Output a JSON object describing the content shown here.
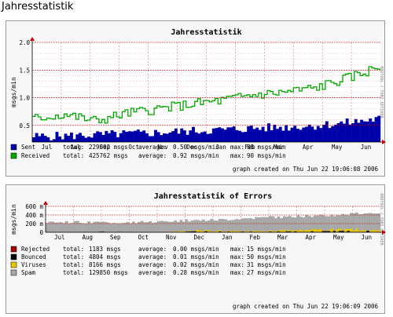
{
  "page": {
    "title": "Jahresstatistik"
  },
  "months": [
    "Jul",
    "Aug",
    "Sep",
    "Oct",
    "Nov",
    "Dec",
    "Jan",
    "Feb",
    "Mar",
    "Apr",
    "May",
    "Jun"
  ],
  "chart_data": [
    {
      "type": "area",
      "title": "Jahresstatistik",
      "ylabel": "msgs/min",
      "side_label": "RRDTOOL / TOBI OETIKER",
      "ylim": [
        0.2,
        2.0
      ],
      "yticks": [
        "0.5",
        "1.0",
        "1.5",
        "2.0"
      ],
      "yticks_values": [
        0.5,
        1.0,
        1.5,
        2.0
      ],
      "categories": [
        "Jul",
        "Aug",
        "Sep",
        "Oct",
        "Nov",
        "Dec",
        "Jan",
        "Feb",
        "Mar",
        "Apr",
        "May",
        "Jun"
      ],
      "series": [
        {
          "name": "Sent",
          "color": "#0000a8",
          "style": "area",
          "total": "229002 msgs",
          "average": "0.50 msgs/min",
          "max": "88 msgs/min",
          "values": [
            0.3,
            0.31,
            0.33,
            0.35,
            0.37,
            0.4,
            0.42,
            0.45,
            0.47,
            0.5,
            0.55,
            0.62
          ]
        },
        {
          "name": "Received",
          "color": "#00a800",
          "style": "line",
          "total": "425762 msgs",
          "average": "0.92 msgs/min",
          "max": "90 msgs/min",
          "values": [
            0.62,
            0.7,
            0.58,
            0.72,
            0.8,
            0.88,
            0.95,
            1.05,
            1.1,
            1.18,
            1.35,
            1.55
          ]
        }
      ],
      "footer": "graph created on Thu Jun 22 19:06:08 2006"
    },
    {
      "type": "area",
      "title": "Jahresstatistik of Errors",
      "ylabel": "msgs/min",
      "side_label": "RRDTOOL / TOBI OETIKER",
      "ylim": [
        0,
        600
      ],
      "yticks": [
        "0",
        "200 m",
        "400 m",
        "600 m"
      ],
      "yticks_values": [
        0,
        200,
        400,
        600
      ],
      "categories": [
        "Jul",
        "Aug",
        "Sep",
        "Oct",
        "Nov",
        "Dec",
        "Jan",
        "Feb",
        "Mar",
        "Apr",
        "May",
        "Jun"
      ],
      "series": [
        {
          "name": "Rejected",
          "color": "#a80000",
          "total": "1183 msgs",
          "average": "0.00 msgs/min",
          "max": "15 msgs/min",
          "values": [
            0,
            0,
            0,
            0,
            0,
            2,
            3,
            0,
            2,
            3,
            2,
            2
          ]
        },
        {
          "name": "Bounced",
          "color": "#000000",
          "total": "4804 msgs",
          "average": "0.01 msgs/min",
          "max": "50 msgs/min",
          "values": [
            0,
            0,
            10,
            0,
            0,
            15,
            10,
            8,
            12,
            15,
            20,
            25
          ]
        },
        {
          "name": "Viruses",
          "color": "#e8c800",
          "total": "8166 msgs",
          "average": "0.02 msgs/min",
          "max": "31 msgs/min",
          "values": [
            0,
            0,
            0,
            0,
            5,
            40,
            30,
            20,
            40,
            55,
            60,
            40
          ]
        },
        {
          "name": "Spam",
          "color": "#a8a8a8",
          "total": "129850 msgs",
          "average": "0.28 msgs/min",
          "max": "27 msgs/min",
          "values": [
            240,
            235,
            215,
            230,
            260,
            280,
            300,
            340,
            360,
            380,
            420,
            460
          ]
        }
      ],
      "footer": "graph created on Thu Jun 22 19:06:09 2006"
    }
  ]
}
